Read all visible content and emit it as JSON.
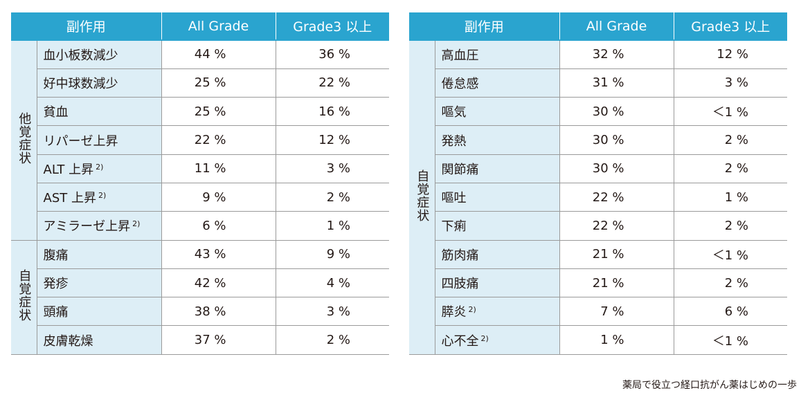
{
  "headers": {
    "side_effect": "副作用",
    "all_grade": "All Grade",
    "grade3": "Grade3 以上"
  },
  "left_table": {
    "groups": [
      {
        "category": "他覚症状",
        "rows": [
          {
            "name": "血小板数減少",
            "note": "",
            "all": "44 %",
            "g3": "36 %"
          },
          {
            "name": "好中球数減少",
            "note": "",
            "all": "25 %",
            "g3": "22 %"
          },
          {
            "name": "貧血",
            "note": "",
            "all": "25 %",
            "g3": "16 %"
          },
          {
            "name": "リパーゼ上昇",
            "note": "",
            "all": "22 %",
            "g3": "12 %"
          },
          {
            "name": "ALT 上昇",
            "note": "2)",
            "all": "11 %",
            "g3": "3 %"
          },
          {
            "name": "AST 上昇",
            "note": "2)",
            "all": "9 %",
            "g3": "2 %"
          },
          {
            "name": "アミラーゼ上昇",
            "note": "2)",
            "all": "6 %",
            "g3": "1 %"
          }
        ]
      },
      {
        "category": "自覚症状",
        "rows": [
          {
            "name": "腹痛",
            "note": "",
            "all": "43 %",
            "g3": "9 %"
          },
          {
            "name": "発疹",
            "note": "",
            "all": "42 %",
            "g3": "4 %"
          },
          {
            "name": "頭痛",
            "note": "",
            "all": "38 %",
            "g3": "3 %"
          },
          {
            "name": "皮膚乾燥",
            "note": "",
            "all": "37 %",
            "g3": "2 %"
          }
        ]
      }
    ]
  },
  "right_table": {
    "groups": [
      {
        "category": "自覚症状",
        "rows": [
          {
            "name": "高血圧",
            "note": "",
            "all": "32 %",
            "g3": "12 %"
          },
          {
            "name": "倦怠感",
            "note": "",
            "all": "31 %",
            "g3": "3 %"
          },
          {
            "name": "嘔気",
            "note": "",
            "all": "30 %",
            "g3": "＜1 %"
          },
          {
            "name": "発熱",
            "note": "",
            "all": "30 %",
            "g3": "2 %"
          },
          {
            "name": "関節痛",
            "note": "",
            "all": "30 %",
            "g3": "2 %"
          },
          {
            "name": "嘔吐",
            "note": "",
            "all": "22 %",
            "g3": "1 %"
          },
          {
            "name": "下痢",
            "note": "",
            "all": "22 %",
            "g3": "2 %"
          },
          {
            "name": "筋肉痛",
            "note": "",
            "all": "21 %",
            "g3": "＜1 %"
          },
          {
            "name": "四肢痛",
            "note": "",
            "all": "21 %",
            "g3": "2 %"
          },
          {
            "name": "膵炎",
            "note": "2)",
            "all": "7 %",
            "g3": "6 %"
          },
          {
            "name": "心不全",
            "note": "2)",
            "all": "1 %",
            "g3": "＜1 %"
          }
        ]
      }
    ]
  },
  "footer": "薬局で役立つ経口抗がん薬はじめの一歩",
  "colors": {
    "header_bg": "#2aa4cf",
    "label_bg": "#ddeef6",
    "border": "#9a9a9a"
  }
}
